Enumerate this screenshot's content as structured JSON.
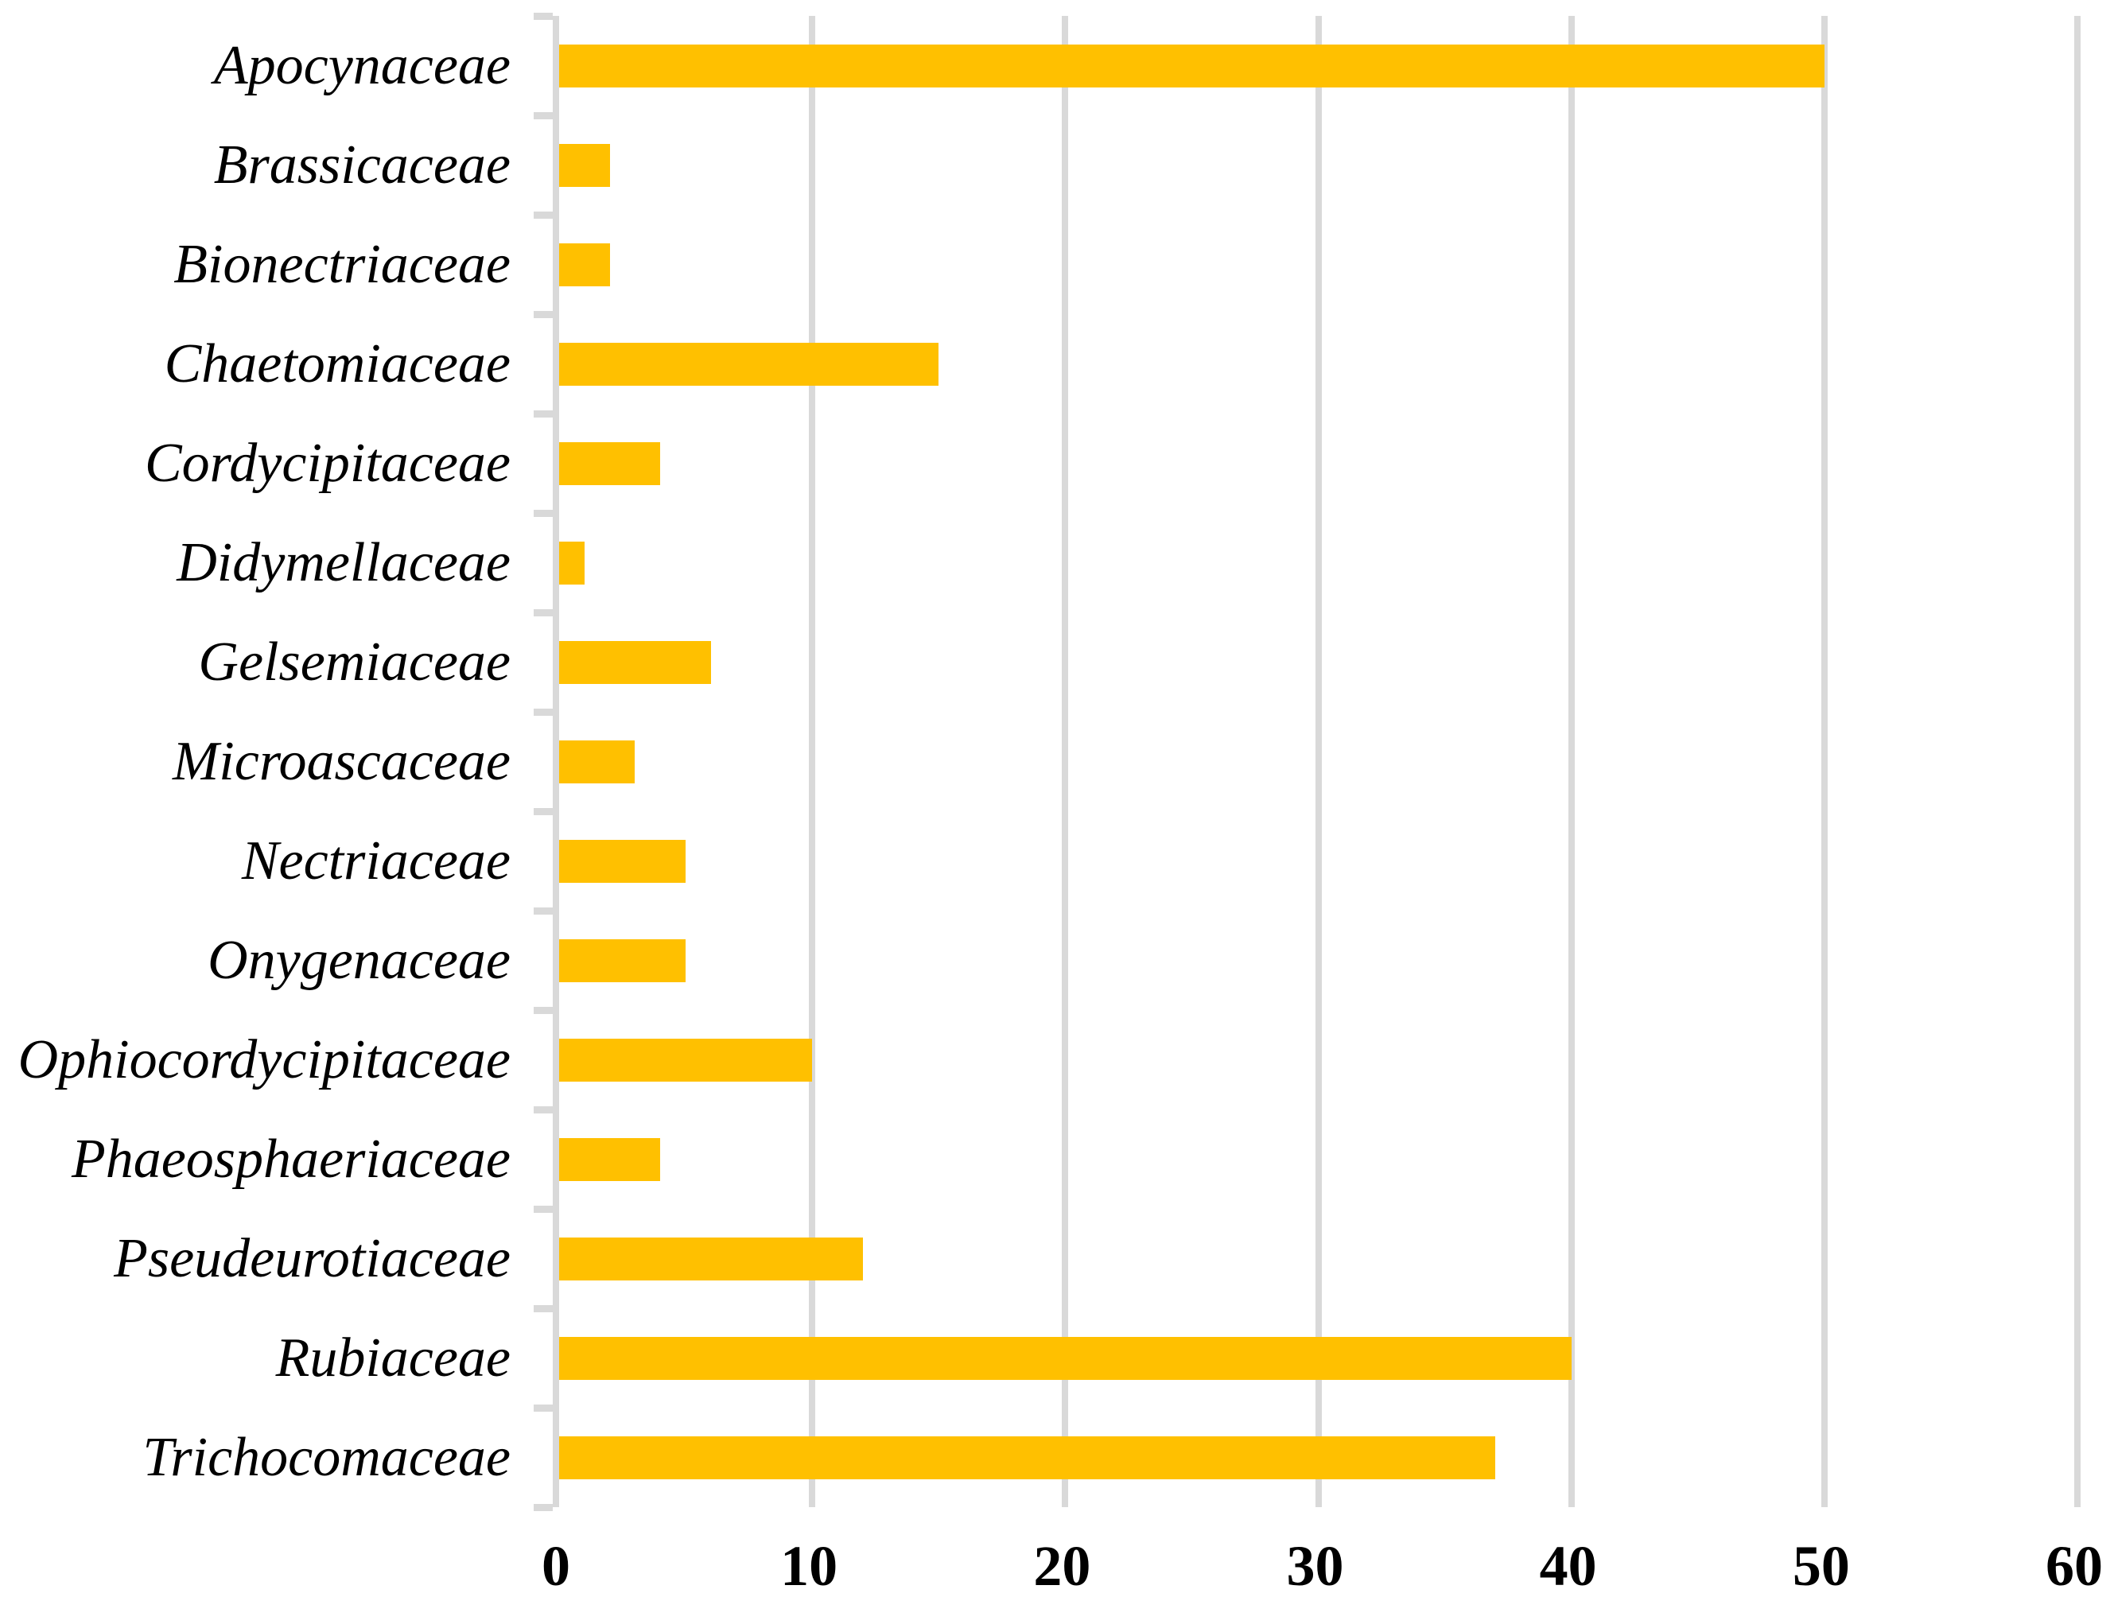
{
  "chart_data": {
    "type": "bar",
    "orientation": "horizontal",
    "title": "",
    "xlabel": "",
    "ylabel": "",
    "categories": [
      "Apocynaceae",
      "Brassicaceae",
      "Bionectriaceae",
      "Chaetomiaceae",
      "Cordycipitaceae",
      "Didymellaceae",
      "Gelsemiaceae",
      "Microascaceae",
      "Nectriaceae",
      "Onygenaceae",
      "Ophiocordycipitaceae",
      "Phaeosphaeriaceae",
      "Pseudeurotiaceae",
      "Rubiaceae",
      "Trichocomaceae"
    ],
    "values": [
      50,
      2,
      2,
      15,
      4,
      1,
      6,
      3,
      5,
      5,
      10,
      4,
      12,
      40,
      37
    ],
    "xlim": [
      0,
      60
    ],
    "xticks": [
      0,
      10,
      20,
      30,
      40,
      50,
      60
    ],
    "grid": "vertical-gridlines-on",
    "legend": "none",
    "bar_color": "#FFC000",
    "grid_color": "#D9D9D9",
    "axis_color": "#D9D9D9",
    "text_color": "#000000"
  }
}
